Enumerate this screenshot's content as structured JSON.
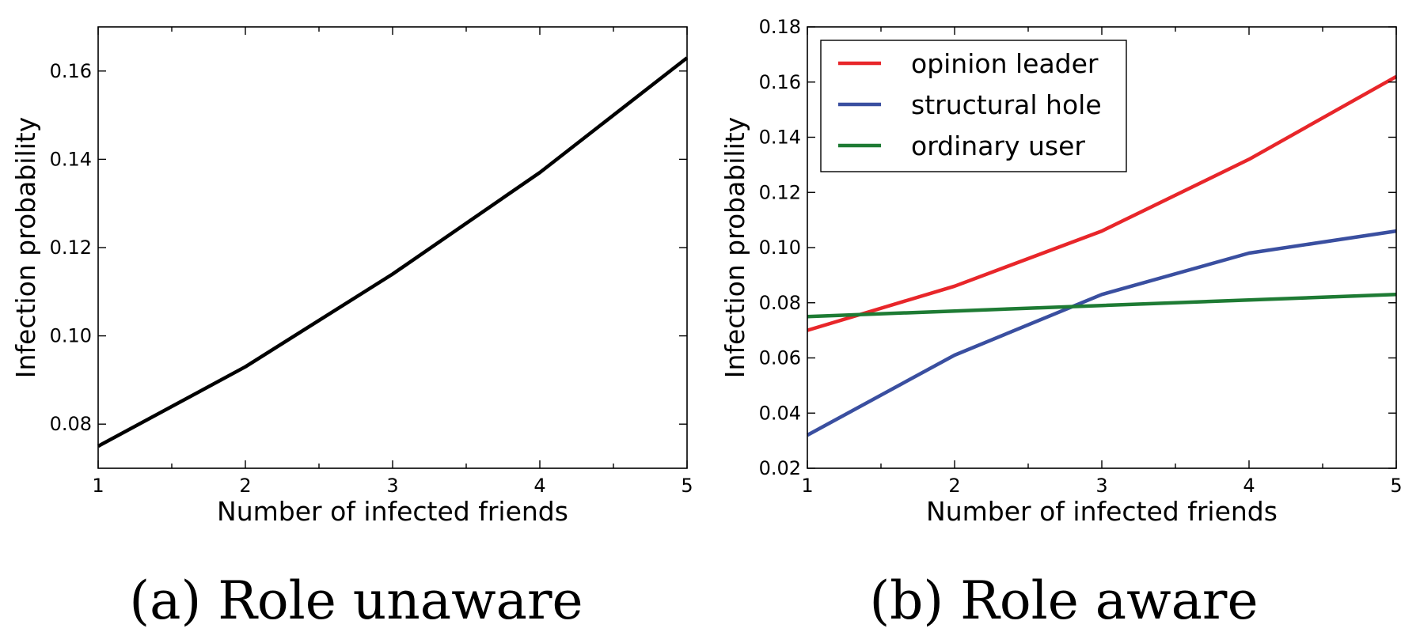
{
  "chart_data": [
    {
      "type": "line",
      "caption": "(a) Role unaware",
      "xlabel": "Number of infected friends",
      "ylabel": "Infection probability",
      "x": [
        1,
        2,
        3,
        4,
        5
      ],
      "xlim": [
        1,
        5
      ],
      "ylim": [
        0.07,
        0.17
      ],
      "xticks": [
        "1",
        "2",
        "3",
        "4",
        "5"
      ],
      "yticks": [
        0.08,
        0.1,
        0.12,
        0.14,
        0.16
      ],
      "ytick_labels": [
        "0.08",
        "0.10",
        "0.12",
        "0.14",
        "0.16"
      ],
      "grid": false,
      "series": [
        {
          "values": [
            0.075,
            0.093,
            0.114,
            0.137,
            0.163
          ],
          "color": "#000000"
        }
      ]
    },
    {
      "type": "line",
      "caption": "(b) Role aware",
      "xlabel": "Number of infected friends",
      "ylabel": "Infection probability",
      "x": [
        1,
        2,
        3,
        4,
        5
      ],
      "xlim": [
        1,
        5
      ],
      "ylim": [
        0.02,
        0.18
      ],
      "xticks": [
        "1",
        "2",
        "3",
        "4",
        "5"
      ],
      "yticks": [
        0.02,
        0.04,
        0.06,
        0.08,
        0.1,
        0.12,
        0.14,
        0.16,
        0.18
      ],
      "ytick_labels": [
        "0.02",
        "0.04",
        "0.06",
        "0.08",
        "0.10",
        "0.12",
        "0.14",
        "0.16",
        "0.18"
      ],
      "grid": false,
      "legend_position": "top-left",
      "series": [
        {
          "name": "opinion leader",
          "values": [
            0.07,
            0.086,
            0.106,
            0.132,
            0.162
          ],
          "color": "#e8262a"
        },
        {
          "name": "structural hole",
          "values": [
            0.032,
            0.061,
            0.083,
            0.098,
            0.106
          ],
          "color": "#3a4fa0"
        },
        {
          "name": "ordinary user",
          "values": [
            0.075,
            0.077,
            0.079,
            0.081,
            0.083
          ],
          "color": "#1e7b34"
        }
      ]
    }
  ]
}
